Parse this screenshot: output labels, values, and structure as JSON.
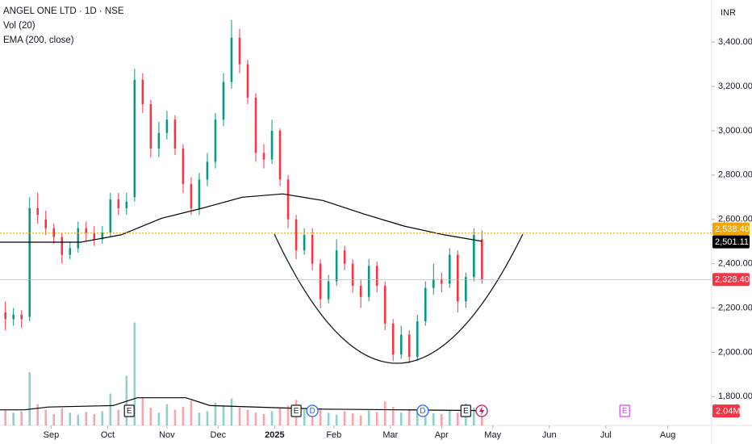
{
  "chart_data": {
    "type": "candlestick",
    "title": "ANGEL ONE LTD · 1D · NSE",
    "indicators": [
      "Vol (20)",
      "EMA (200, close)"
    ],
    "currency": "INR",
    "x": [
      2,
      5,
      8,
      11,
      14,
      17,
      20,
      23,
      26,
      29,
      32,
      35,
      38,
      41,
      44,
      47,
      50,
      53,
      56,
      59,
      62,
      65,
      68,
      71,
      74,
      77,
      80,
      83,
      86,
      89,
      92,
      95,
      98,
      101,
      104,
      107,
      110,
      113,
      116,
      119,
      122,
      125,
      128,
      131,
      134,
      137,
      140,
      143,
      146,
      149,
      152,
      155,
      158,
      161,
      164,
      167,
      170,
      173,
      176,
      179
    ],
    "open": [
      2180,
      2150,
      2170,
      2160,
      2650,
      2600,
      2560,
      2520,
      2440,
      2470,
      2560,
      2540,
      2510,
      2540,
      2690,
      2650,
      2700,
      3230,
      3120,
      2920,
      2990,
      3050,
      2920,
      2760,
      2650,
      2780,
      2860,
      3050,
      3220,
      3420,
      3300,
      3150,
      2900,
      2870,
      3000,
      2780,
      2600,
      2460,
      2530,
      2400,
      2240,
      2320,
      2460,
      2400,
      2300,
      2250,
      2390,
      2300,
      2130,
      1990,
      2080,
      1980,
      2140,
      2290,
      2330,
      2310,
      2440,
      2230,
      2340,
      2510
    ],
    "high": [
      2230,
      2200,
      2190,
      2700,
      2720,
      2640,
      2580,
      2540,
      2500,
      2590,
      2590,
      2570,
      2570,
      2720,
      2720,
      2720,
      3280,
      3260,
      3140,
      3040,
      3090,
      3070,
      2940,
      2790,
      2810,
      2900,
      3080,
      3260,
      3500,
      3460,
      3320,
      3170,
      2940,
      3050,
      3010,
      2800,
      2620,
      2560,
      2560,
      2420,
      2350,
      2510,
      2480,
      2420,
      2330,
      2420,
      2410,
      2320,
      2150,
      2120,
      2100,
      2170,
      2320,
      2400,
      2360,
      2470,
      2460,
      2360,
      2560,
      2550
    ],
    "low": [
      2100,
      2120,
      2110,
      2140,
      2580,
      2530,
      2490,
      2400,
      2420,
      2450,
      2500,
      2480,
      2490,
      2520,
      2620,
      2620,
      2680,
      3080,
      2880,
      2880,
      2960,
      2890,
      2720,
      2620,
      2620,
      2750,
      2830,
      3020,
      3190,
      3260,
      3120,
      2860,
      2830,
      2850,
      2750,
      2560,
      2420,
      2440,
      2370,
      2200,
      2220,
      2300,
      2370,
      2270,
      2200,
      2230,
      2270,
      2100,
      1960,
      1970,
      1950,
      1960,
      2120,
      2260,
      2270,
      2290,
      2180,
      2200,
      2320,
      2310
    ],
    "close": [
      2150,
      2170,
      2150,
      2650,
      2620,
      2560,
      2520,
      2440,
      2470,
      2560,
      2540,
      2510,
      2540,
      2690,
      2650,
      2680,
      3230,
      3120,
      2920,
      2990,
      3050,
      2920,
      2760,
      2650,
      2780,
      2860,
      3050,
      3220,
      3420,
      3300,
      3150,
      2900,
      2870,
      3000,
      2780,
      2600,
      2460,
      2530,
      2400,
      2240,
      2320,
      2460,
      2400,
      2300,
      2250,
      2390,
      2300,
      2130,
      1990,
      2080,
      1980,
      2140,
      2290,
      2330,
      2310,
      2440,
      2230,
      2340,
      2530,
      2328.4
    ],
    "volume": [
      2.1,
      1.8,
      2.0,
      7.5,
      3.0,
      2.2,
      1.6,
      2.4,
      1.8,
      1.5,
      1.9,
      1.6,
      2.0,
      4.5,
      2.2,
      7.0,
      14.5,
      4.0,
      2.5,
      1.8,
      3.0,
      2.2,
      2.6,
      3.5,
      1.8,
      2.0,
      3.2,
      2.8,
      3.8,
      2.5,
      2.2,
      1.8,
      1.6,
      2.0,
      2.4,
      2.8,
      3.6,
      2.2,
      1.6,
      2.4,
      1.8,
      1.5,
      2.0,
      1.7,
      1.4,
      2.1,
      1.9,
      3.4,
      2.6,
      1.8,
      2.3,
      2.0,
      1.9,
      1.7,
      1.6,
      2.2,
      1.8,
      3.1,
      2.5,
      2.04
    ],
    "up_color": "#089981",
    "down_color": "#f23645",
    "xlim": [
      0,
      264.3
    ],
    "xticks": [
      {
        "value": 19,
        "label": "Sep"
      },
      {
        "value": 40,
        "label": "Oct"
      },
      {
        "value": 62,
        "label": "Nov"
      },
      {
        "value": 81,
        "label": "Dec"
      },
      {
        "value": 102,
        "label": "2025"
      },
      {
        "value": 124,
        "label": "Feb"
      },
      {
        "value": 145,
        "label": "Mar"
      },
      {
        "value": 164,
        "label": "Apr"
      },
      {
        "value": 183,
        "label": "May"
      },
      {
        "value": 204,
        "label": "Jun"
      },
      {
        "value": 225,
        "label": "Jul"
      },
      {
        "value": 248,
        "label": "Aug"
      }
    ],
    "ylim": [
      1670,
      3590
    ],
    "yticks": [
      {
        "value": 1800,
        "label": "1,800.00"
      },
      {
        "value": 2000,
        "label": "2,000.00"
      },
      {
        "value": 2200,
        "label": "2,200.00"
      },
      {
        "value": 2400,
        "label": "2,400.00"
      },
      {
        "value": 2600,
        "label": "2,600.00"
      },
      {
        "value": 2800,
        "label": "2,800.00"
      },
      {
        "value": 3000,
        "label": "3,000.00"
      },
      {
        "value": 3200,
        "label": "3,200.00"
      },
      {
        "value": 3400,
        "label": "3,400.00"
      }
    ],
    "y2lim": [
      0,
      60
    ],
    "ema": {
      "color": "#000000",
      "x": [
        0,
        30,
        45,
        60,
        75,
        90,
        105,
        120,
        135,
        150,
        165,
        179
      ],
      "values": [
        2497,
        2497,
        2530,
        2605,
        2650,
        2700,
        2715,
        2685,
        2625,
        2570,
        2530,
        2501.11
      ]
    },
    "volume_ma": {
      "color": "#000000",
      "x": [
        0,
        9,
        18,
        42,
        51,
        69,
        78,
        102,
        120,
        150,
        179
      ],
      "values": [
        2.2,
        2.2,
        2.6,
        2.8,
        3.9,
        3.9,
        2.8,
        2.5,
        2.3,
        2.2,
        2.1
      ]
    },
    "price_lines": [
      {
        "value": 2538.4,
        "label": "2,538.40",
        "color": "#f7a600"
      },
      {
        "value": 2501.11,
        "label": "2,501.11",
        "color": "#000000"
      },
      {
        "value": 2328.4,
        "label": "2,328.40",
        "color": "#f23645"
      }
    ],
    "volume_label": {
      "value": 2.04,
      "label": "2.04M",
      "color": "#f23645"
    },
    "events": [
      {
        "x": 48,
        "label": "E"
      },
      {
        "x": 110,
        "label": "E"
      },
      {
        "x": 116,
        "label": "D"
      },
      {
        "x": 157,
        "label": "D"
      },
      {
        "x": 173,
        "label": "E"
      },
      {
        "x": 232,
        "label": "E"
      }
    ]
  }
}
